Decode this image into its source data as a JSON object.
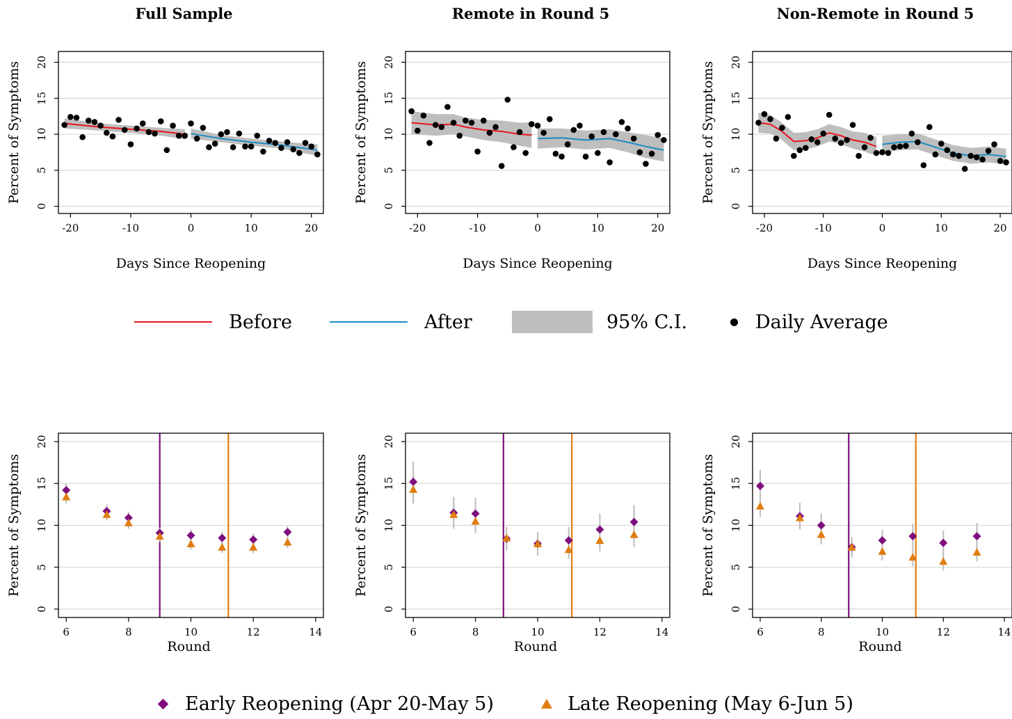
{
  "colors": {
    "before": "#e8141c",
    "after": "#1a8cc4",
    "ci": "#bebebe",
    "dot": "#000000",
    "early": "#7e0f7e",
    "late": "#e07d10",
    "errbar": "#bdbdbd",
    "grid": "#d9d9d9"
  },
  "legend_top": {
    "before": "Before",
    "after": "After",
    "ci": "95% C.I.",
    "daily": "Daily Average"
  },
  "legend_bottom": {
    "early": "Early Reopening (Apr 20-May 5)",
    "late": "Late Reopening (May 6-Jun 5)"
  },
  "chart_data": [
    {
      "type": "scatter",
      "title": "Full Sample",
      "xlabel": "Days Since Reopening",
      "ylabel": "Percent of Symptoms",
      "xlim": [
        -22,
        22
      ],
      "ylim": [
        -1,
        21.5
      ],
      "xticks": [
        -20,
        -10,
        0,
        10,
        20
      ],
      "yticks": [
        0,
        5,
        10,
        15,
        20
      ],
      "grid": true,
      "x": [
        -21,
        -20,
        -19,
        -18,
        -17,
        -16,
        -15,
        -14,
        -13,
        -12,
        -11,
        -10,
        -9,
        -8,
        -7,
        -6,
        -5,
        -4,
        -3,
        -2,
        -1,
        0,
        1,
        2,
        3,
        4,
        5,
        6,
        7,
        8,
        9,
        10,
        11,
        12,
        13,
        14,
        15,
        16,
        17,
        18,
        19,
        20,
        21
      ],
      "y": [
        11.3,
        12.4,
        12.3,
        9.6,
        11.9,
        11.7,
        11.2,
        10.2,
        9.7,
        12.0,
        10.6,
        8.6,
        10.8,
        11.5,
        10.3,
        10.1,
        11.8,
        7.8,
        11.2,
        9.8,
        9.8,
        11.5,
        9.4,
        10.9,
        8.2,
        8.7,
        10.0,
        10.3,
        8.2,
        10.1,
        8.3,
        8.3,
        9.8,
        7.6,
        9.1,
        8.8,
        8.1,
        8.9,
        7.9,
        7.4,
        8.8,
        8.3,
        7.2
      ],
      "before_fit": {
        "x": [
          -21,
          -15,
          -10,
          -5,
          -1
        ],
        "y": [
          11.5,
          11.0,
          10.7,
          10.4,
          10.0
        ],
        "lo": [
          10.8,
          10.5,
          10.2,
          9.8,
          9.3
        ],
        "hi": [
          12.2,
          11.5,
          11.2,
          10.9,
          10.7
        ]
      },
      "after_fit": {
        "x": [
          0,
          5,
          10,
          15,
          21
        ],
        "y": [
          10.1,
          9.4,
          8.9,
          8.5,
          7.8
        ],
        "lo": [
          9.4,
          8.9,
          8.4,
          8.0,
          7.0
        ],
        "hi": [
          10.8,
          9.9,
          9.4,
          9.0,
          8.6
        ]
      }
    },
    {
      "type": "scatter",
      "title": "Remote in Round 5",
      "xlabel": "Days Since Reopening",
      "ylabel": "Percent of Symptoms",
      "xlim": [
        -22,
        22
      ],
      "ylim": [
        -1,
        21.5
      ],
      "xticks": [
        -20,
        -10,
        0,
        10,
        20
      ],
      "yticks": [
        0,
        5,
        10,
        15,
        20
      ],
      "grid": true,
      "x": [
        -21,
        -20,
        -19,
        -18,
        -17,
        -16,
        -15,
        -14,
        -13,
        -12,
        -11,
        -10,
        -9,
        -8,
        -7,
        -6,
        -5,
        -4,
        -3,
        -2,
        -1,
        0,
        1,
        2,
        3,
        4,
        5,
        6,
        7,
        8,
        9,
        10,
        11,
        12,
        13,
        14,
        15,
        16,
        17,
        18,
        19,
        20,
        21
      ],
      "y": [
        13.2,
        10.5,
        12.6,
        8.8,
        11.3,
        11.0,
        13.8,
        11.6,
        9.8,
        11.9,
        11.6,
        7.6,
        11.9,
        10.2,
        11.0,
        5.6,
        14.8,
        8.2,
        10.3,
        7.4,
        11.4,
        11.2,
        10.2,
        12.1,
        7.3,
        6.9,
        8.6,
        10.6,
        11.2,
        6.9,
        9.7,
        7.4,
        10.3,
        6.1,
        10.0,
        11.7,
        10.8,
        9.4,
        7.5,
        5.9,
        7.3,
        9.9,
        9.2
      ],
      "before_fit": {
        "x": [
          -21,
          -17,
          -14,
          -12,
          -9,
          -6,
          -3,
          -1
        ],
        "y": [
          11.6,
          11.3,
          11.4,
          11.0,
          10.6,
          10.4,
          10.0,
          9.9
        ],
        "lo": [
          10.0,
          9.8,
          10.0,
          9.7,
          9.2,
          8.9,
          8.4,
          8.1
        ],
        "hi": [
          13.2,
          12.8,
          12.8,
          12.3,
          12.0,
          11.9,
          11.6,
          11.7
        ]
      },
      "after_fit": {
        "x": [
          0,
          4,
          8,
          12,
          15,
          18,
          21
        ],
        "y": [
          9.4,
          9.5,
          9.2,
          9.4,
          8.9,
          8.3,
          7.8
        ],
        "lo": [
          8.0,
          8.2,
          7.9,
          8.1,
          7.5,
          6.7,
          6.2
        ],
        "hi": [
          10.8,
          10.8,
          10.5,
          10.7,
          10.3,
          9.9,
          9.4
        ]
      }
    },
    {
      "type": "scatter",
      "title": "Non-Remote in Round 5",
      "xlabel": "Days Since Reopening",
      "ylabel": "Percent of Symptoms",
      "xlim": [
        -22,
        22
      ],
      "ylim": [
        -1,
        21.5
      ],
      "xticks": [
        -20,
        -10,
        0,
        10,
        20
      ],
      "yticks": [
        0,
        5,
        10,
        15,
        20
      ],
      "grid": true,
      "x": [
        -21,
        -20,
        -19,
        -18,
        -17,
        -16,
        -15,
        -14,
        -13,
        -12,
        -11,
        -10,
        -9,
        -8,
        -7,
        -6,
        -5,
        -4,
        -3,
        -2,
        -1,
        0,
        1,
        2,
        3,
        4,
        5,
        6,
        7,
        8,
        9,
        10,
        11,
        12,
        13,
        14,
        15,
        16,
        17,
        18,
        19,
        20,
        21
      ],
      "y": [
        11.6,
        12.8,
        12.1,
        9.4,
        10.9,
        12.4,
        7.0,
        7.8,
        8.1,
        9.3,
        8.9,
        10.1,
        12.7,
        9.4,
        8.8,
        9.2,
        11.3,
        7.0,
        8.2,
        9.5,
        7.4,
        7.5,
        7.4,
        8.2,
        8.3,
        8.4,
        10.1,
        8.9,
        5.7,
        11.0,
        7.2,
        8.7,
        7.8,
        7.2,
        7.0,
        5.2,
        7.0,
        6.8,
        6.5,
        7.7,
        8.6,
        6.3,
        6.1
      ],
      "before_fit": {
        "x": [
          -21,
          -19,
          -17,
          -15,
          -13,
          -11,
          -9,
          -7,
          -5,
          -3,
          -1
        ],
        "y": [
          11.6,
          11.4,
          10.4,
          9.0,
          9.1,
          9.5,
          10.2,
          9.8,
          9.2,
          8.9,
          8.3
        ],
        "lo": [
          10.2,
          10.1,
          9.2,
          7.8,
          7.9,
          8.3,
          9.0,
          8.6,
          8.0,
          7.6,
          7.0
        ],
        "hi": [
          13.0,
          12.7,
          11.6,
          10.2,
          10.3,
          10.7,
          11.4,
          11.0,
          10.4,
          10.2,
          9.6
        ]
      },
      "after_fit": {
        "x": [
          0,
          3,
          6,
          9,
          12,
          15,
          18,
          21
        ],
        "y": [
          8.6,
          8.9,
          9.0,
          8.2,
          7.4,
          7.0,
          7.2,
          6.9
        ],
        "lo": [
          7.4,
          7.8,
          7.9,
          7.1,
          6.3,
          5.9,
          6.1,
          5.8
        ],
        "hi": [
          9.8,
          10.0,
          10.1,
          9.3,
          8.5,
          8.1,
          8.3,
          8.0
        ]
      }
    },
    {
      "type": "scatter",
      "title": "",
      "xlabel": "Round",
      "ylabel": "Percent of Symptoms",
      "xlim": [
        5.75,
        14.25
      ],
      "ylim": [
        -1,
        21
      ],
      "xticks": [
        6,
        8,
        10,
        12,
        14
      ],
      "yticks": [
        0,
        5,
        10,
        15,
        20
      ],
      "grid": true,
      "vlines": [
        9,
        11.2
      ],
      "series": [
        {
          "name": "Early Reopening (Apr 20-May 5)",
          "marker": "diamond",
          "x": [
            6,
            7.3,
            8,
            9,
            10,
            11,
            12,
            13.1
          ],
          "y": [
            14.2,
            11.7,
            10.9,
            9.1,
            8.8,
            8.5,
            8.3,
            9.2
          ],
          "lo": [
            13.4,
            11.0,
            10.2,
            8.5,
            8.1,
            7.8,
            7.6,
            8.5
          ],
          "hi": [
            15.0,
            12.5,
            11.6,
            9.7,
            9.5,
            9.2,
            9.0,
            9.9
          ]
        },
        {
          "name": "Late Reopening (May 6-Jun 5)",
          "marker": "triangle",
          "x": [
            6,
            7.3,
            8,
            9,
            10,
            11,
            12,
            13.1
          ],
          "y": [
            13.4,
            11.3,
            10.3,
            8.7,
            7.8,
            7.4,
            7.4,
            8.0
          ],
          "lo": [
            12.6,
            10.6,
            9.6,
            8.0,
            7.1,
            6.7,
            6.7,
            7.3
          ],
          "hi": [
            14.2,
            12.0,
            11.0,
            9.4,
            8.5,
            8.1,
            8.1,
            8.7
          ]
        }
      ]
    },
    {
      "type": "scatter",
      "title": "",
      "xlabel": "Round",
      "ylabel": "Percent of Symptoms",
      "xlim": [
        5.75,
        14.25
      ],
      "ylim": [
        -1,
        21
      ],
      "xticks": [
        6,
        8,
        10,
        12,
        14
      ],
      "yticks": [
        0,
        5,
        10,
        15,
        20
      ],
      "grid": true,
      "vlines": [
        8.9,
        11.1
      ],
      "series": [
        {
          "name": "Early Reopening (Apr 20-May 5)",
          "marker": "diamond",
          "x": [
            6,
            7.3,
            8,
            9,
            10,
            11,
            12,
            13.1
          ],
          "y": [
            15.2,
            11.5,
            11.4,
            8.4,
            7.8,
            8.2,
            9.5,
            10.4
          ],
          "lo": [
            12.7,
            9.6,
            9.5,
            7.0,
            6.4,
            6.6,
            7.6,
            8.3
          ],
          "hi": [
            17.6,
            13.4,
            13.3,
            9.8,
            9.2,
            9.8,
            11.4,
            12.4
          ]
        },
        {
          "name": "Late Reopening (May 6-Jun 5)",
          "marker": "triangle",
          "x": [
            6,
            7.3,
            8,
            9,
            10,
            11,
            12,
            13.1
          ],
          "y": [
            14.3,
            11.3,
            10.5,
            8.5,
            7.8,
            7.1,
            8.2,
            8.9
          ],
          "lo": [
            12.6,
            9.9,
            9.1,
            7.2,
            6.6,
            6.0,
            6.9,
            7.4
          ],
          "hi": [
            16.0,
            12.7,
            11.9,
            9.8,
            9.0,
            8.2,
            9.5,
            10.4
          ]
        }
      ]
    },
    {
      "type": "scatter",
      "title": "",
      "xlabel": "Round",
      "ylabel": "Percent of Symptoms",
      "xlim": [
        5.75,
        14.25
      ],
      "ylim": [
        -1,
        21
      ],
      "xticks": [
        6,
        8,
        10,
        12,
        14
      ],
      "yticks": [
        0,
        5,
        10,
        15,
        20
      ],
      "grid": true,
      "vlines": [
        8.9,
        11.1
      ],
      "series": [
        {
          "name": "Early Reopening (Apr 20-May 5)",
          "marker": "diamond",
          "x": [
            6,
            7.3,
            8,
            9,
            10,
            11,
            12,
            13.1
          ],
          "y": [
            14.7,
            11.1,
            10.0,
            7.4,
            8.2,
            8.7,
            7.9,
            8.7
          ],
          "lo": [
            12.8,
            9.5,
            8.6,
            6.2,
            6.9,
            7.2,
            6.4,
            7.2
          ],
          "hi": [
            16.6,
            12.7,
            11.4,
            8.6,
            9.5,
            10.2,
            9.4,
            10.3
          ]
        },
        {
          "name": "Late Reopening (May 6-Jun 5)",
          "marker": "triangle",
          "x": [
            6,
            7.3,
            8,
            9,
            10,
            11,
            12,
            13.1
          ],
          "y": [
            12.3,
            10.9,
            8.9,
            7.4,
            6.9,
            6.2,
            5.7,
            6.8
          ],
          "lo": [
            11.0,
            9.7,
            7.7,
            6.3,
            5.8,
            5.1,
            4.6,
            5.7
          ],
          "hi": [
            13.6,
            12.1,
            10.1,
            8.5,
            8.0,
            7.3,
            6.8,
            7.9
          ]
        }
      ]
    }
  ]
}
